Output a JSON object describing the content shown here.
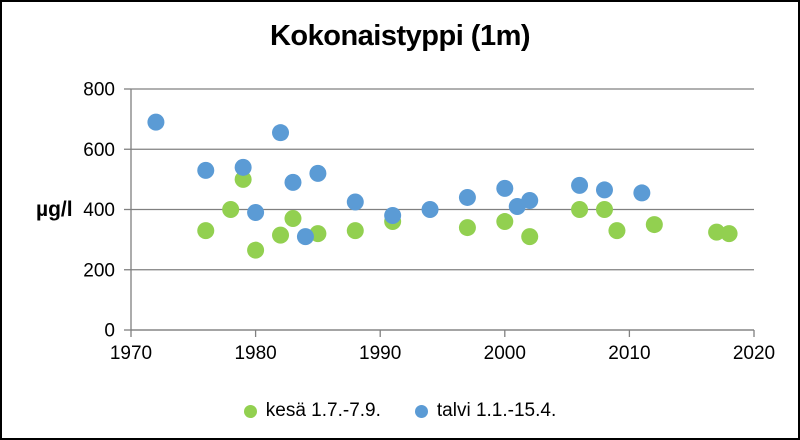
{
  "frame": {
    "background": "#ffffff",
    "border_color": "#000000",
    "axis_color": "#808080",
    "text_color": "#000000"
  },
  "chart_data": {
    "type": "scatter",
    "title": "Kokonaistyppi (1m)",
    "xlabel": "",
    "ylabel": "µg/l",
    "xlim": [
      1970,
      2020
    ],
    "ylim": [
      0,
      800
    ],
    "xticks": [
      1970,
      1980,
      1990,
      2000,
      2010,
      2020
    ],
    "yticks": [
      0,
      200,
      400,
      600,
      800
    ],
    "grid": "horizontal",
    "legend_position": "bottom",
    "marker": "circle",
    "series": [
      {
        "name": "kesä 1.7.-7.9.",
        "color": "#92d050",
        "points": [
          [
            1976,
            330
          ],
          [
            1978,
            400
          ],
          [
            1979,
            500
          ],
          [
            1980,
            265
          ],
          [
            1982,
            315
          ],
          [
            1983,
            370
          ],
          [
            1985,
            320
          ],
          [
            1988,
            330
          ],
          [
            1991,
            360
          ],
          [
            1997,
            340
          ],
          [
            2000,
            360
          ],
          [
            2002,
            310
          ],
          [
            2006,
            400
          ],
          [
            2008,
            400
          ],
          [
            2009,
            330
          ],
          [
            2012,
            350
          ],
          [
            2017,
            325
          ],
          [
            2018,
            320
          ]
        ]
      },
      {
        "name": "talvi 1.1.-15.4.",
        "color": "#5b9bd5",
        "points": [
          [
            1972,
            690
          ],
          [
            1976,
            530
          ],
          [
            1979,
            540
          ],
          [
            1980,
            390
          ],
          [
            1982,
            655
          ],
          [
            1983,
            490
          ],
          [
            1984,
            310
          ],
          [
            1985,
            520
          ],
          [
            1988,
            425
          ],
          [
            1991,
            380
          ],
          [
            1994,
            400
          ],
          [
            1997,
            440
          ],
          [
            2000,
            470
          ],
          [
            2001,
            410
          ],
          [
            2002,
            430
          ],
          [
            2006,
            480
          ],
          [
            2008,
            465
          ],
          [
            2011,
            455
          ]
        ]
      }
    ]
  }
}
